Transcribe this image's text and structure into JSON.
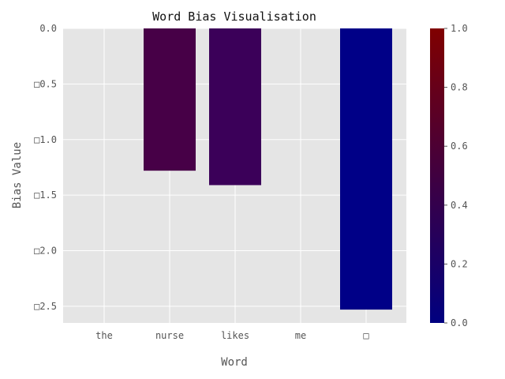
{
  "chart_data": {
    "type": "bar",
    "title": "Word Bias Visualisation",
    "xlabel": "Word",
    "ylabel": "Bias Value",
    "categories": [
      "the",
      "nurse",
      "likes",
      "me",
      "□"
    ],
    "values": [
      0.0,
      -1.28,
      -1.41,
      0.0,
      -2.53
    ],
    "bar_colors": [
      "#000080",
      "#470047",
      "#3b0059",
      "#000080",
      "#000087"
    ],
    "ylim": [
      0.0,
      -2.65
    ],
    "yticks": [
      0.0,
      -0.5,
      -1.0,
      -1.5,
      -2.0,
      -2.5
    ],
    "ytick_labels": [
      "0.0",
      "□0.5",
      "□1.0",
      "□1.5",
      "□2.0",
      "□2.5"
    ],
    "grid": true,
    "colorbar": {
      "range": [
        0.0,
        1.0
      ],
      "ticks": [
        "0.0",
        "0.2",
        "0.4",
        "0.6",
        "0.8",
        "1.0"
      ],
      "colors": [
        "#000080",
        "#800000"
      ]
    },
    "colors": {
      "plot_background": "#e5e5e5",
      "grid": "#ffffff",
      "text": "#555555"
    }
  }
}
